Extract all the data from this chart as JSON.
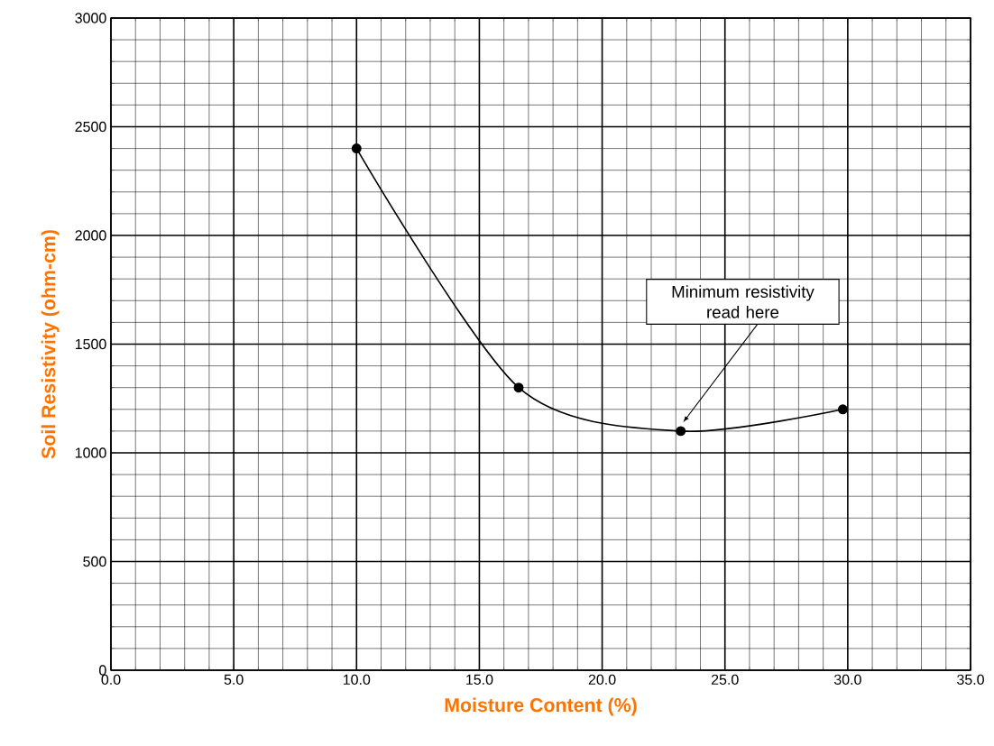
{
  "chart_data": {
    "type": "line",
    "xlabel": "Moisture Content (%)",
    "ylabel": "Soil Resistivity (ohm-cm)",
    "x": [
      10.0,
      16.6,
      23.2,
      29.8
    ],
    "series": [
      {
        "color": "#000000",
        "values": [
          2400,
          1300,
          1100,
          1200
        ]
      }
    ],
    "xlim": [
      0,
      35
    ],
    "ylim": [
      0,
      3000
    ],
    "xticks": [
      {
        "value": 0,
        "label": "0.0"
      },
      {
        "value": 5,
        "label": "5.0"
      },
      {
        "value": 10,
        "label": "10.0"
      },
      {
        "value": 15,
        "label": "15.0"
      },
      {
        "value": 20,
        "label": "20.0"
      },
      {
        "value": 25,
        "label": "25.0"
      },
      {
        "value": 30,
        "label": "30.0"
      },
      {
        "value": 35,
        "label": "35.0"
      }
    ],
    "yticks": [
      0,
      500,
      1000,
      1500,
      2000,
      2500,
      3000
    ],
    "grid": true,
    "marker": "circle",
    "line_style": "solid",
    "annotations": [
      {
        "text": "Minimum resistivity read here",
        "x": 23.3,
        "y": 1140
      }
    ]
  }
}
